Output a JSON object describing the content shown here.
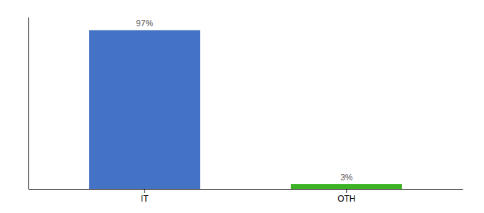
{
  "chart_data": {
    "type": "bar",
    "categories": [
      "IT",
      "OTH"
    ],
    "values": [
      97,
      3
    ],
    "value_labels": [
      "97%",
      "3%"
    ],
    "colors": [
      "#4472c4",
      "#3cb325"
    ],
    "ylim": [
      0,
      105
    ],
    "data_labels": true,
    "tick_labels": "x"
  }
}
